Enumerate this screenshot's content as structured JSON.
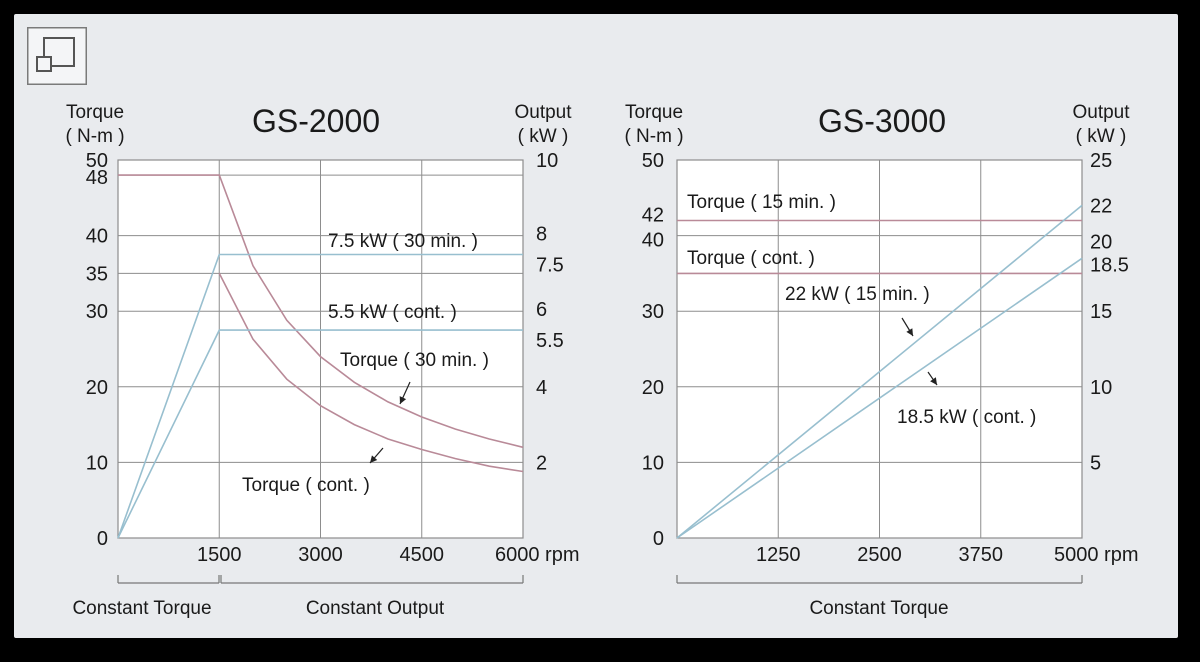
{
  "colors": {
    "panel": "#e9ebee",
    "grid": "#8d8d8d",
    "torque_line": "#b98a98",
    "output_line": "#98bfcf",
    "text": "#1a1a1a"
  },
  "icon": {
    "name": "expand-window-icon"
  },
  "chart_data": [
    {
      "type": "line",
      "title": "GS-2000",
      "ylabel": "Torque\n( N-m )",
      "y2label": "Output\n( kW )",
      "x_unit": "rpm",
      "xlim": [
        0,
        6000
      ],
      "ylim": [
        0,
        50
      ],
      "y2lim": [
        0,
        10
      ],
      "x_ticks": [
        "1500",
        "3000",
        "4500",
        "6000 rpm"
      ],
      "y_ticks": [
        "0",
        "10",
        "20",
        "30",
        "35",
        "40",
        "48",
        "50"
      ],
      "y2_ticks": [
        "2",
        "4",
        "5.5",
        "6",
        "7.5",
        "8",
        "10"
      ],
      "grid": true,
      "series": [
        {
          "name": "Torque ( 30 min. )",
          "axis": "left",
          "kind": "torque",
          "x": [
            0,
            1500,
            2000,
            2500,
            3000,
            3500,
            4000,
            4500,
            5000,
            5500,
            6000
          ],
          "y": [
            48,
            48,
            36,
            28.8,
            24,
            20.6,
            18,
            16,
            14.4,
            13.1,
            12
          ]
        },
        {
          "name": "Torque ( cont. )",
          "axis": "left",
          "kind": "torque",
          "x": [
            1500,
            2000,
            2500,
            3000,
            3500,
            4000,
            4500,
            5000,
            5500,
            6000
          ],
          "y": [
            35,
            26.3,
            21,
            17.5,
            15,
            13.1,
            11.7,
            10.5,
            9.5,
            8.8
          ]
        },
        {
          "name": "7.5 kW ( 30 min. )",
          "axis": "right",
          "kind": "output",
          "x": [
            0,
            1500,
            6000
          ],
          "y": [
            0,
            7.5,
            7.5
          ]
        },
        {
          "name": "5.5 kW ( cont. )",
          "axis": "right",
          "kind": "output",
          "x": [
            0,
            1500,
            6000
          ],
          "y": [
            0,
            5.5,
            5.5
          ]
        }
      ],
      "annotations": [
        "Torque ( 30 min. )",
        "Torque ( cont. )",
        "7.5 kW ( 30 min. )",
        "5.5 kW ( cont. )"
      ],
      "bracket_labels": [
        "Constant Torque",
        "Constant Output"
      ]
    },
    {
      "type": "line",
      "title": "GS-3000",
      "ylabel": "Torque\n( N-m )",
      "y2label": "Output\n( kW )",
      "x_unit": "rpm",
      "xlim": [
        0,
        5000
      ],
      "ylim": [
        0,
        50
      ],
      "y2lim": [
        0,
        25
      ],
      "x_ticks": [
        "1250",
        "2500",
        "3750",
        "5000 rpm"
      ],
      "y_ticks": [
        "0",
        "10",
        "20",
        "30",
        "40",
        "42",
        "50"
      ],
      "y2_ticks": [
        "5",
        "10",
        "15",
        "18.5",
        "20",
        "22",
        "25"
      ],
      "grid": true,
      "series": [
        {
          "name": "Torque ( 15 min. )",
          "axis": "left",
          "kind": "torque",
          "x": [
            0,
            5000
          ],
          "y": [
            42,
            42
          ]
        },
        {
          "name": "Torque ( cont. )",
          "axis": "left",
          "kind": "torque",
          "x": [
            0,
            5000
          ],
          "y": [
            35,
            35
          ]
        },
        {
          "name": "22 kW ( 15 min. )",
          "axis": "right",
          "kind": "output",
          "x": [
            0,
            5000
          ],
          "y": [
            0,
            22
          ]
        },
        {
          "name": "18.5 kW ( cont. )",
          "axis": "right",
          "kind": "output",
          "x": [
            0,
            5000
          ],
          "y": [
            0,
            18.5
          ]
        }
      ],
      "annotations": [
        "Torque ( 15 min. )",
        "Torque ( cont. )",
        "22 kW ( 15 min. )",
        "18.5 kW ( cont. )"
      ],
      "bracket_labels": [
        "Constant Torque"
      ]
    }
  ]
}
